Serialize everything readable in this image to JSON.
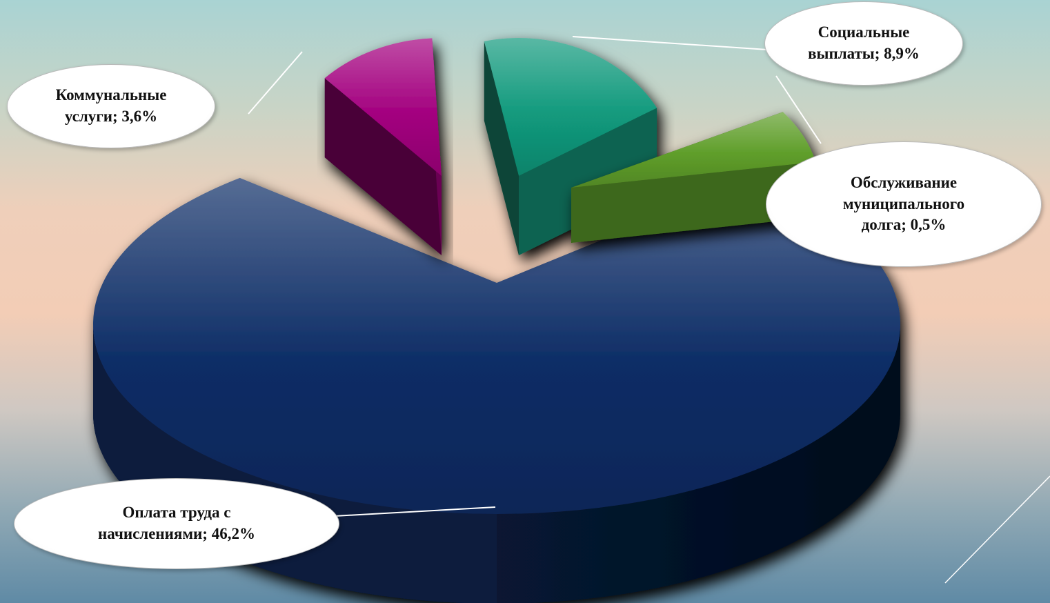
{
  "chart_data": {
    "type": "pie",
    "style": "3d-exploded",
    "slices": [
      {
        "label": "Коммунальные услуги",
        "value": 3.6,
        "text_line1": "Коммунальные",
        "text_line2": "услуги; 3,6%",
        "color": "#a3007f"
      },
      {
        "label": "Социальные выплаты",
        "value": 8.9,
        "text_line1": "Социальные",
        "text_line2": "выплаты; 8,9%",
        "color": "#129a7d"
      },
      {
        "label": "Обслуживание муниципального долга",
        "value": 0.5,
        "text_line1": "Обслуживание",
        "text_line2": "муниципального",
        "text_line3": "долга; 0,5%",
        "color": "#5f9e2a"
      },
      {
        "label": "Оплата труда с начислениями",
        "value": 46.2,
        "text_line1": "Оплата труда с",
        "text_line2": "начислениями; 46,2%",
        "color": "#0d2d66"
      }
    ]
  }
}
